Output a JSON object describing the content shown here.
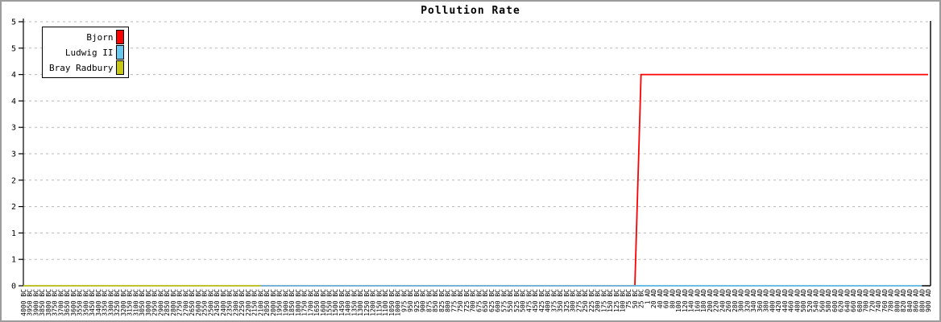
{
  "window": {
    "title": "Pollution Rate"
  },
  "chart_data": {
    "type": "line",
    "title": "Pollution Rate",
    "categories": [
      "4000 BC",
      "3950 BC",
      "3900 BC",
      "3850 BC",
      "3800 BC",
      "3750 BC",
      "3700 BC",
      "3650 BC",
      "3600 BC",
      "3550 BC",
      "3500 BC",
      "3450 BC",
      "3400 BC",
      "3350 BC",
      "3300 BC",
      "3250 BC",
      "3200 BC",
      "3150 BC",
      "3100 BC",
      "3050 BC",
      "3000 BC",
      "2950 BC",
      "2900 BC",
      "2850 BC",
      "2800 BC",
      "2750 BC",
      "2700 BC",
      "2650 BC",
      "2600 BC",
      "2550 BC",
      "2500 BC",
      "2450 BC",
      "2400 BC",
      "2350 BC",
      "2300 BC",
      "2250 BC",
      "2200 BC",
      "2150 BC",
      "2100 BC",
      "2050 BC",
      "2000 BC",
      "1950 BC",
      "1900 BC",
      "1850 BC",
      "1800 BC",
      "1750 BC",
      "1700 BC",
      "1650 BC",
      "1600 BC",
      "1550 BC",
      "1500 BC",
      "1450 BC",
      "1400 BC",
      "1350 BC",
      "1300 BC",
      "1250 BC",
      "1200 BC",
      "1150 BC",
      "1100 BC",
      "1050 BC",
      "1000 BC",
      "975 BC",
      "950 BC",
      "925 BC",
      "900 BC",
      "875 BC",
      "850 BC",
      "825 BC",
      "800 BC",
      "775 BC",
      "750 BC",
      "725 BC",
      "700 BC",
      "675 BC",
      "650 BC",
      "625 BC",
      "600 BC",
      "575 BC",
      "550 BC",
      "525 BC",
      "500 BC",
      "475 BC",
      "450 BC",
      "425 BC",
      "400 BC",
      "375 BC",
      "350 BC",
      "325 BC",
      "300 BC",
      "275 BC",
      "250 BC",
      "225 BC",
      "200 BC",
      "175 BC",
      "150 BC",
      "125 BC",
      "100 BC",
      "75 BC",
      "50 BC",
      "25 BC",
      "1 AD",
      "20 AD",
      "40 AD",
      "60 AD",
      "80 AD",
      "100 AD",
      "120 AD",
      "140 AD",
      "160 AD",
      "180 AD",
      "200 AD",
      "220 AD",
      "240 AD",
      "260 AD",
      "280 AD",
      "300 AD",
      "320 AD",
      "340 AD",
      "360 AD",
      "380 AD",
      "400 AD",
      "420 AD",
      "440 AD",
      "460 AD",
      "480 AD",
      "500 AD",
      "520 AD",
      "540 AD",
      "560 AD",
      "580 AD",
      "600 AD",
      "620 AD",
      "640 AD",
      "660 AD",
      "680 AD",
      "700 AD",
      "720 AD",
      "740 AD",
      "760 AD",
      "780 AD",
      "800 AD",
      "820 AD",
      "840 AD",
      "860 AD",
      "880 AD",
      "900 AD"
    ],
    "series": [
      {
        "name": "Bjorn",
        "color": "#ff0000",
        "segments": [
          {
            "from": "4000 BC",
            "to": "50 BC",
            "value": 0
          },
          {
            "from": "25 BC",
            "to": "900 AD",
            "value": 4
          }
        ]
      },
      {
        "name": "Ludwig II",
        "color": "#69c8f0",
        "segments": [
          {
            "from": "4000 BC",
            "to": "880 AD",
            "value": 0
          }
        ]
      },
      {
        "name": "Bray Radbury",
        "color": "#c8c814",
        "segments": [
          {
            "from": "4000 BC",
            "to": "2100 BC",
            "value": 0
          }
        ]
      }
    ],
    "ylim": [
      0,
      5
    ],
    "y_tick_step": 0.5,
    "y_tick_labels_top_to_bottom": [
      "5",
      "5",
      "4",
      "4",
      "3",
      "3",
      "2",
      "2",
      "1",
      "1",
      "0"
    ],
    "grid": "horizontal dashed gray",
    "legend_position": "top-left"
  },
  "legend": {
    "items": [
      {
        "label": "Bjorn",
        "color": "#ff0000"
      },
      {
        "label": "Ludwig II",
        "color": "#69c8f0"
      },
      {
        "label": "Bray Radbury",
        "color": "#c8c814"
      }
    ]
  },
  "colors": {
    "grid": "#b8b8b8",
    "axis": "#000000",
    "outer_border": "#9c9c9c",
    "background": "#ffffff",
    "text": "#000000"
  }
}
